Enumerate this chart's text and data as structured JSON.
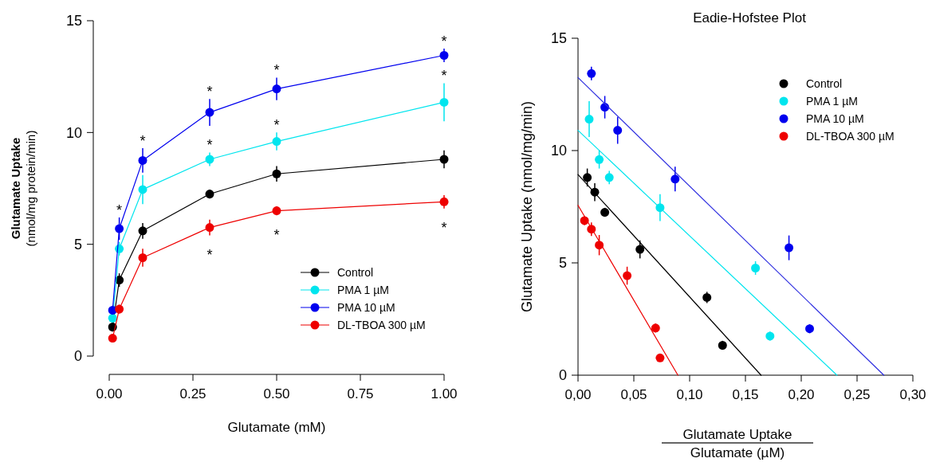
{
  "chart_data": [
    {
      "type": "line",
      "xlabel": "Glutamate (mM)",
      "ylabel": "Glutamate Uptake\n(nmol/mg protein/min)",
      "x": [
        0.01,
        0.03,
        0.1,
        0.3,
        0.5,
        1.0
      ],
      "xlim": [
        0,
        1
      ],
      "xticks": [
        {
          "value": 0,
          "label": "0.00"
        },
        {
          "value": 0.25,
          "label": "0.25"
        },
        {
          "value": 0.5,
          "label": "0.50"
        },
        {
          "value": 0.75,
          "label": "0.75"
        },
        {
          "value": 1,
          "label": "1.00"
        }
      ],
      "ylim": [
        0,
        15
      ],
      "yticks": [
        0,
        5,
        10,
        15
      ],
      "grid": false,
      "legend": "bottom right",
      "marker": "circle",
      "series": [
        {
          "name": "Control",
          "color": "#000000",
          "values": [
            1.3,
            3.4,
            5.6,
            7.25,
            8.15,
            8.8
          ],
          "errors": [
            0.2,
            0.3,
            0.35,
            0.2,
            0.35,
            0.4
          ]
        },
        {
          "name": "PMA 1 µM",
          "color": "#00e5ee",
          "values": [
            1.7,
            4.8,
            7.45,
            8.8,
            9.6,
            11.35
          ],
          "errors": [
            0.2,
            0.3,
            0.65,
            0.3,
            0.4,
            0.85
          ]
        },
        {
          "name": "PMA 10 µM",
          "color": "#0000ee",
          "values": [
            2.05,
            5.7,
            8.75,
            10.9,
            11.95,
            13.45
          ],
          "errors": [
            0.2,
            0.5,
            0.55,
            0.6,
            0.5,
            0.3
          ]
        },
        {
          "name": "DL-TBOA 300 µM",
          "color": "#ee0000",
          "values": [
            0.8,
            2.1,
            4.4,
            5.75,
            6.5,
            6.9
          ],
          "errors": [
            0.15,
            0.2,
            0.4,
            0.35,
            0.2,
            0.3
          ]
        }
      ],
      "annotations": [
        {
          "text": "*",
          "x": 0.03,
          "y": 5.7
        },
        {
          "text": "*",
          "x": 0.1,
          "y": 8.75
        },
        {
          "text": "*",
          "x": 0.3,
          "y": 10.9
        },
        {
          "text": "*",
          "x": 0.3,
          "y": 8.8
        },
        {
          "text": "*",
          "x": 0.3,
          "y": 5.75
        },
        {
          "text": "*",
          "x": 0.5,
          "y": 11.95
        },
        {
          "text": "*",
          "x": 0.5,
          "y": 9.6
        },
        {
          "text": "*",
          "x": 0.5,
          "y": 6.5
        },
        {
          "text": "*",
          "x": 1.0,
          "y": 13.45
        },
        {
          "text": "*",
          "x": 1.0,
          "y": 11.35
        },
        {
          "text": "*",
          "x": 1.0,
          "y": 6.9
        }
      ]
    },
    {
      "type": "scatter",
      "title": "Eadie-Hofstee Plot",
      "xlabel": "Glutamate Uptake\nGlutamate (µM)",
      "ylabel": "Glutamate Uptake (nmol/mg/min)",
      "xlim": [
        0,
        0.3
      ],
      "xticks": [
        {
          "value": 0,
          "label": "0,00"
        },
        {
          "value": 0.05,
          "label": "0,05"
        },
        {
          "value": 0.1,
          "label": "0,10"
        },
        {
          "value": 0.15,
          "label": "0,15"
        },
        {
          "value": 0.2,
          "label": "0,20"
        },
        {
          "value": 0.25,
          "label": "0,25"
        },
        {
          "value": 0.3,
          "label": "0,30"
        }
      ],
      "ylim": [
        0,
        15
      ],
      "yticks": [
        0,
        5,
        10,
        15
      ],
      "grid": false,
      "legend": "top right",
      "marker": "circle",
      "series": [
        {
          "name": "Control",
          "color": "#000000",
          "x": [
            0.0083,
            0.015,
            0.024,
            0.0555,
            0.1155,
            0.1295
          ],
          "values": [
            8.8,
            8.15,
            7.25,
            5.6,
            3.46,
            1.33
          ],
          "errors": [
            0.4,
            0.4,
            0.2,
            0.4,
            0.25,
            0.2
          ]
        },
        {
          "name": "PMA 1 µM",
          "color": "#00e5ee",
          "x": [
            0.01,
            0.019,
            0.028,
            0.0735,
            0.159,
            0.172
          ],
          "values": [
            11.4,
            9.6,
            8.8,
            7.46,
            4.77,
            1.74
          ],
          "errors": [
            0.8,
            0.4,
            0.3,
            0.6,
            0.3,
            0.2
          ]
        },
        {
          "name": "PMA 10 µM",
          "color": "#0000ee",
          "x": [
            0.012,
            0.024,
            0.0355,
            0.087,
            0.189,
            0.2075
          ],
          "values": [
            13.43,
            11.93,
            10.9,
            8.73,
            5.67,
            2.07
          ],
          "errors": [
            0.3,
            0.5,
            0.6,
            0.55,
            0.55,
            0.2
          ]
        },
        {
          "name": "DL-TBOA 300 µM",
          "color": "#ee0000",
          "x": [
            0.0058,
            0.012,
            0.019,
            0.044,
            0.0695,
            0.0735
          ],
          "values": [
            6.88,
            6.5,
            5.79,
            4.43,
            2.1,
            0.77
          ],
          "errors": [
            0.2,
            0.3,
            0.45,
            0.4,
            0.2,
            0.15
          ]
        },
        {
          "type": "line",
          "color": "#000000",
          "x": [
            0,
            0.164
          ],
          "values": [
            8.93,
            0
          ],
          "marker": "none"
        },
        {
          "type": "line",
          "color": "#00e5ee",
          "x": [
            0,
            0.232
          ],
          "values": [
            10.9,
            0
          ],
          "marker": "none"
        },
        {
          "type": "line",
          "color": "#3030e0",
          "x": [
            0,
            0.274
          ],
          "values": [
            13.25,
            0
          ],
          "marker": "none"
        },
        {
          "type": "line",
          "color": "#ee0000",
          "x": [
            0,
            0.0895
          ],
          "values": [
            7.56,
            0
          ],
          "marker": "none"
        }
      ]
    }
  ]
}
